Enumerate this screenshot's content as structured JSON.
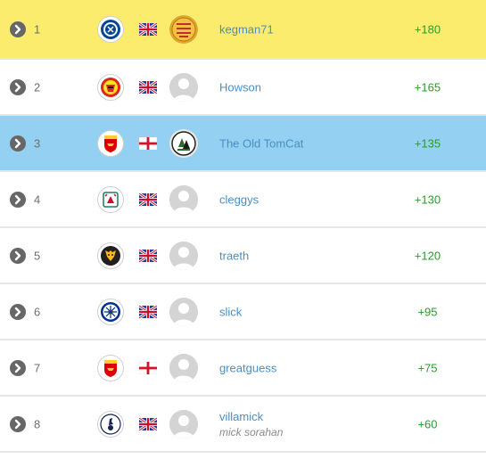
{
  "rows": [
    {
      "rank": "1",
      "player": "kegman71",
      "subname": "",
      "points": "+180",
      "flag": "uk",
      "crest": "chelsea-crest",
      "avatar": "custom-badge-avatar",
      "highlight": "yellow"
    },
    {
      "rank": "2",
      "player": "Howson",
      "subname": "",
      "points": "+165",
      "flag": "uk",
      "crest": "manchester-united-crest",
      "avatar": "default-avatar",
      "highlight": ""
    },
    {
      "rank": "3",
      "player": "The Old TomCat",
      "subname": "",
      "points": "+135",
      "flag": "england",
      "crest": "arsenal-crest",
      "avatar": "forest-green-badge-avatar",
      "highlight": "blue"
    },
    {
      "rank": "4",
      "player": "cleggys",
      "subname": "",
      "points": "+130",
      "flag": "uk",
      "crest": "liverpool-crest",
      "avatar": "default-avatar",
      "highlight": ""
    },
    {
      "rank": "5",
      "player": "traeth",
      "subname": "",
      "points": "+120",
      "flag": "uk",
      "crest": "wolves-crest",
      "avatar": "default-avatar",
      "highlight": ""
    },
    {
      "rank": "6",
      "player": "slick",
      "subname": "",
      "points": "+95",
      "flag": "uk",
      "crest": "leicester-crest",
      "avatar": "default-avatar",
      "highlight": ""
    },
    {
      "rank": "7",
      "player": "greatguess",
      "subname": "",
      "points": "+75",
      "flag": "england",
      "crest": "arsenal-crest",
      "avatar": "default-avatar",
      "highlight": ""
    },
    {
      "rank": "8",
      "player": "villamick",
      "subname": "mick sorahan",
      "points": "+60",
      "flag": "uk",
      "crest": "tottenham-crest",
      "avatar": "default-avatar",
      "highlight": ""
    }
  ],
  "colors": {
    "highlight_yellow": "#fbec6e",
    "highlight_blue": "#94d0f2",
    "player_name": "#4a8ec4",
    "points": "#2c9a2c",
    "rank": "#6e6e6e"
  }
}
